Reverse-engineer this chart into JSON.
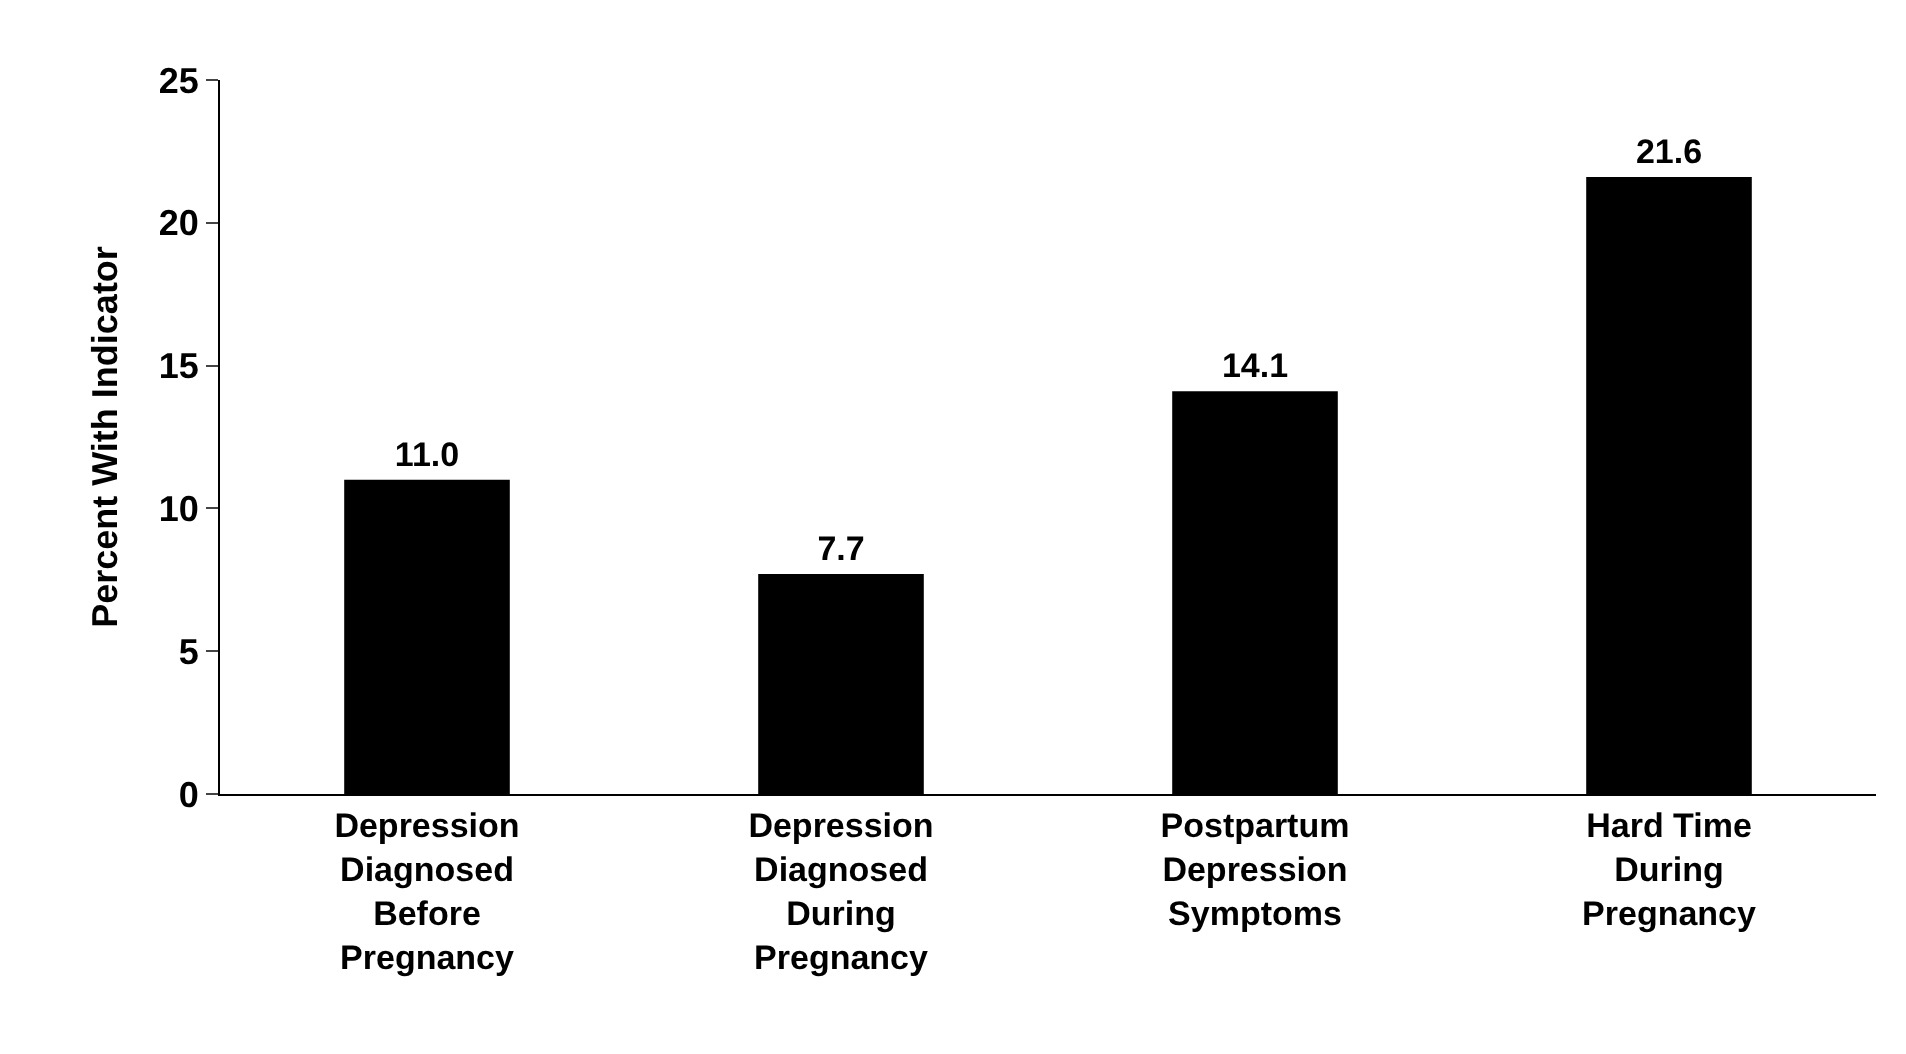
{
  "chart_data": {
    "type": "bar",
    "categories": [
      "Depression Diagnosed Before Pregnancy",
      "Depression Diagnosed During Pregnancy",
      "Postpartum Depression Symptoms",
      "Hard Time During Pregnancy"
    ],
    "values": [
      11.0,
      7.7,
      14.1,
      21.6
    ],
    "value_labels": [
      "11.0",
      "7.7",
      "14.1",
      "21.6"
    ],
    "color": "#000000",
    "ylabel": "Percent With Indicator",
    "ylim": [
      0,
      25
    ],
    "yticks": [
      0,
      5,
      10,
      15,
      20,
      25
    ]
  }
}
